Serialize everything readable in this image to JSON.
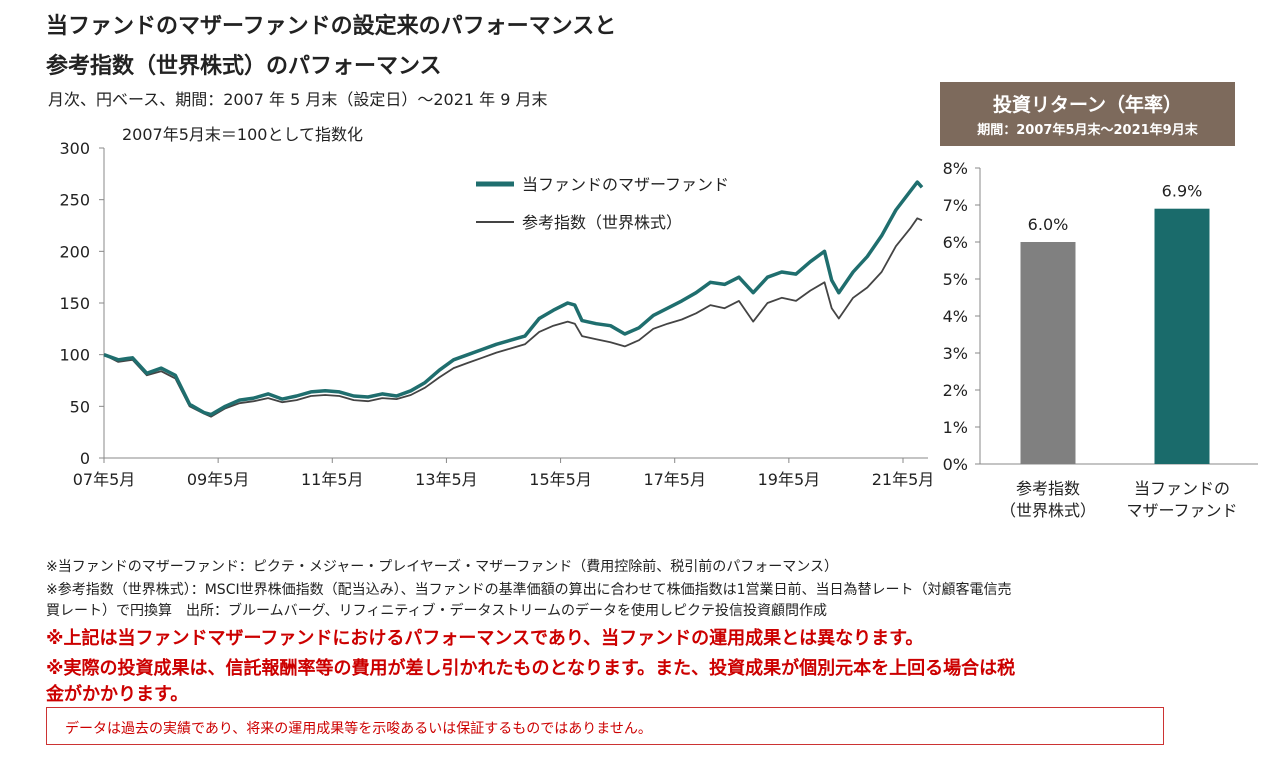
{
  "header": {
    "title_line1": "当ファンドのマザーファンドの設定来のパフォーマンスと",
    "title_line2": "参考指数（世界株式）のパフォーマンス",
    "subtitle": "月次、円ベース、期間：2007 年 5 月末（設定日）～2021 年 9 月末"
  },
  "chart_data": [
    {
      "type": "line",
      "annotation": "2007年5月末＝100として指数化",
      "ylim": [
        0,
        300
      ],
      "y_ticks": [
        0,
        50,
        100,
        150,
        200,
        250,
        300
      ],
      "x_ticks": [
        "07年5月",
        "09年5月",
        "11年5月",
        "13年5月",
        "15年5月",
        "17年5月",
        "19年5月",
        "21年5月"
      ],
      "x_range": [
        2007.375,
        2021.708
      ],
      "grid": false,
      "legend_position": "top",
      "series": [
        {
          "name": "当ファンドのマザーファンド",
          "color": "#1f6e6e",
          "points": [
            [
              2007.375,
              100
            ],
            [
              2007.625,
              95
            ],
            [
              2007.875,
              97
            ],
            [
              2008.125,
              82
            ],
            [
              2008.375,
              87
            ],
            [
              2008.625,
              80
            ],
            [
              2008.875,
              52
            ],
            [
              2009.125,
              44
            ],
            [
              2009.25,
              42
            ],
            [
              2009.5,
              50
            ],
            [
              2009.75,
              56
            ],
            [
              2010.0,
              58
            ],
            [
              2010.25,
              62
            ],
            [
              2010.5,
              57
            ],
            [
              2010.75,
              60
            ],
            [
              2011.0,
              64
            ],
            [
              2011.25,
              65
            ],
            [
              2011.5,
              64
            ],
            [
              2011.75,
              60
            ],
            [
              2012.0,
              59
            ],
            [
              2012.25,
              62
            ],
            [
              2012.5,
              60
            ],
            [
              2012.75,
              65
            ],
            [
              2013.0,
              73
            ],
            [
              2013.25,
              85
            ],
            [
              2013.5,
              95
            ],
            [
              2013.75,
              100
            ],
            [
              2014.0,
              105
            ],
            [
              2014.25,
              110
            ],
            [
              2014.5,
              114
            ],
            [
              2014.75,
              118
            ],
            [
              2015.0,
              135
            ],
            [
              2015.25,
              143
            ],
            [
              2015.5,
              150
            ],
            [
              2015.625,
              148
            ],
            [
              2015.75,
              133
            ],
            [
              2016.0,
              130
            ],
            [
              2016.25,
              128
            ],
            [
              2016.5,
              120
            ],
            [
              2016.75,
              126
            ],
            [
              2017.0,
              138
            ],
            [
              2017.25,
              145
            ],
            [
              2017.5,
              152
            ],
            [
              2017.75,
              160
            ],
            [
              2018.0,
              170
            ],
            [
              2018.25,
              168
            ],
            [
              2018.5,
              175
            ],
            [
              2018.75,
              160
            ],
            [
              2019.0,
              175
            ],
            [
              2019.25,
              180
            ],
            [
              2019.5,
              178
            ],
            [
              2019.75,
              190
            ],
            [
              2020.0,
              200
            ],
            [
              2020.125,
              172
            ],
            [
              2020.25,
              160
            ],
            [
              2020.5,
              180
            ],
            [
              2020.75,
              195
            ],
            [
              2021.0,
              215
            ],
            [
              2021.25,
              240
            ],
            [
              2021.5,
              258
            ],
            [
              2021.625,
              267
            ],
            [
              2021.708,
              262
            ]
          ]
        },
        {
          "name": "参考指数（世界株式）",
          "color": "#444444",
          "points": [
            [
              2007.375,
              100
            ],
            [
              2007.625,
              93
            ],
            [
              2007.875,
              95
            ],
            [
              2008.125,
              80
            ],
            [
              2008.375,
              84
            ],
            [
              2008.625,
              77
            ],
            [
              2008.875,
              50
            ],
            [
              2009.125,
              43
            ],
            [
              2009.25,
              40
            ],
            [
              2009.5,
              48
            ],
            [
              2009.75,
              53
            ],
            [
              2010.0,
              55
            ],
            [
              2010.25,
              58
            ],
            [
              2010.5,
              54
            ],
            [
              2010.75,
              56
            ],
            [
              2011.0,
              60
            ],
            [
              2011.25,
              61
            ],
            [
              2011.5,
              60
            ],
            [
              2011.75,
              56
            ],
            [
              2012.0,
              55
            ],
            [
              2012.25,
              58
            ],
            [
              2012.5,
              57
            ],
            [
              2012.75,
              61
            ],
            [
              2013.0,
              68
            ],
            [
              2013.25,
              78
            ],
            [
              2013.5,
              87
            ],
            [
              2013.75,
              92
            ],
            [
              2014.0,
              97
            ],
            [
              2014.25,
              102
            ],
            [
              2014.5,
              106
            ],
            [
              2014.75,
              110
            ],
            [
              2015.0,
              122
            ],
            [
              2015.25,
              128
            ],
            [
              2015.5,
              132
            ],
            [
              2015.625,
              130
            ],
            [
              2015.75,
              118
            ],
            [
              2016.0,
              115
            ],
            [
              2016.25,
              112
            ],
            [
              2016.5,
              108
            ],
            [
              2016.75,
              114
            ],
            [
              2017.0,
              125
            ],
            [
              2017.25,
              130
            ],
            [
              2017.5,
              134
            ],
            [
              2017.75,
              140
            ],
            [
              2018.0,
              148
            ],
            [
              2018.25,
              145
            ],
            [
              2018.5,
              152
            ],
            [
              2018.75,
              132
            ],
            [
              2019.0,
              150
            ],
            [
              2019.25,
              155
            ],
            [
              2019.5,
              152
            ],
            [
              2019.75,
              162
            ],
            [
              2020.0,
              170
            ],
            [
              2020.125,
              145
            ],
            [
              2020.25,
              135
            ],
            [
              2020.5,
              155
            ],
            [
              2020.75,
              165
            ],
            [
              2021.0,
              180
            ],
            [
              2021.25,
              205
            ],
            [
              2021.5,
              222
            ],
            [
              2021.625,
              232
            ],
            [
              2021.708,
              230
            ]
          ]
        }
      ]
    },
    {
      "type": "bar",
      "title": "投資リターン（年率）",
      "subtitle": "期間：2007年5月末～2021年9月末",
      "ylim": [
        0,
        8
      ],
      "y_ticks": [
        "0%",
        "1%",
        "2%",
        "3%",
        "4%",
        "5%",
        "6%",
        "7%",
        "8%"
      ],
      "categories": [
        "参考指数\n（世界株式）",
        "当ファンドの\nマザーファンド"
      ],
      "category_lines": [
        [
          "参考指数",
          "（世界株式）"
        ],
        [
          "当ファンドの",
          "マザーファンド"
        ]
      ],
      "values": [
        6.0,
        6.9
      ],
      "data_labels": [
        "6.0%",
        "6.9%"
      ],
      "colors": [
        "#808080",
        "#1a6b6b"
      ]
    }
  ],
  "notes": {
    "note1": "※当ファンドのマザーファンド：ピクテ・メジャー・プレイヤーズ・マザーファンド（費用控除前、税引前のパフォーマンス）",
    "note2": "※参考指数（世界株式）：MSCI世界株価指数（配当込み）、当ファンドの基準価額の算出に合わせて株価指数は1営業日前、当日為替レート（対顧客電信売",
    "note3": "買レート）で円換算　出所：ブルームバーグ、リフィニティブ・データストリームのデータを使用しピクテ投信投資顧問作成",
    "warning1": "※上記は当ファンドマザーファンドにおけるパフォーマンスであり、当ファンドの運用成果とは異なります。",
    "warning2": "※実際の投資成果は、信託報酬率等の費用が差し引かれたものとなります。また、投資成果が個別元本を上回る場合は税",
    "warning3": "金がかかります。",
    "disclaimer": "データは過去の実績であり、将来の運用成果等を示唆あるいは保証するものではありません。"
  }
}
